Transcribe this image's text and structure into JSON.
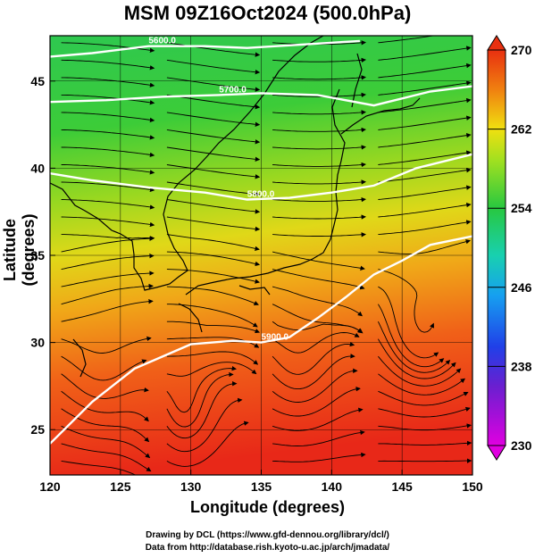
{
  "title": "MSM 09Z16Oct2024 (500.0hPa)",
  "xlabel": "Longitude (degrees)",
  "ylabel": "Latitude  (degrees)",
  "credit_line1": "Drawing by DCL (https://www.gfd-dennou.org/library/dcl/)",
  "credit_line2": "Data from http://database.rish.kyoto-u.ac.jp/arch/jmadata/",
  "chart_data": {
    "type": "heatmap",
    "variable": "temperature",
    "xlim": [
      120,
      150
    ],
    "ylim": [
      22.4,
      47.6
    ],
    "x_ticks": [
      120,
      125,
      130,
      135,
      140,
      145,
      150
    ],
    "y_ticks": [
      25,
      30,
      35,
      40,
      45
    ],
    "colorbar": {
      "min": 230,
      "max": 270,
      "ticks": [
        230,
        238,
        246,
        254,
        262,
        270
      ]
    },
    "contours": [
      {
        "label": "5600.0",
        "points": [
          [
            120,
            46.4
          ],
          [
            123,
            46.6
          ],
          [
            127,
            47.0
          ],
          [
            131,
            47.0
          ],
          [
            134,
            46.9
          ],
          [
            138,
            47.1
          ],
          [
            142,
            47.3
          ]
        ]
      },
      {
        "label": "5700.0",
        "points": [
          [
            120,
            43.8
          ],
          [
            124,
            43.9
          ],
          [
            128,
            44.1
          ],
          [
            132,
            44.2
          ],
          [
            135,
            44.3
          ],
          [
            139,
            44.2
          ],
          [
            143,
            43.6
          ],
          [
            147,
            44.4
          ],
          [
            150,
            44.7
          ]
        ]
      },
      {
        "label": "5800.0",
        "points": [
          [
            120,
            39.7
          ],
          [
            123,
            39.3
          ],
          [
            127,
            38.9
          ],
          [
            131,
            38.6
          ],
          [
            134,
            38.2
          ],
          [
            137,
            38.3
          ],
          [
            140,
            38.6
          ],
          [
            143,
            39.0
          ],
          [
            146,
            40.0
          ],
          [
            150,
            40.8
          ]
        ]
      },
      {
        "label": "5900.0",
        "points": [
          [
            120,
            24.2
          ],
          [
            123,
            26.6
          ],
          [
            126,
            28.5
          ],
          [
            130,
            29.9
          ],
          [
            133,
            30.1
          ],
          [
            135,
            30.0
          ],
          [
            137,
            30.3
          ],
          [
            139,
            31.4
          ],
          [
            141,
            32.6
          ],
          [
            143,
            33.9
          ],
          [
            145,
            34.7
          ],
          [
            147,
            35.6
          ],
          [
            150,
            36.1
          ]
        ]
      }
    ],
    "wind": "streamlines, predominantly westerly"
  }
}
